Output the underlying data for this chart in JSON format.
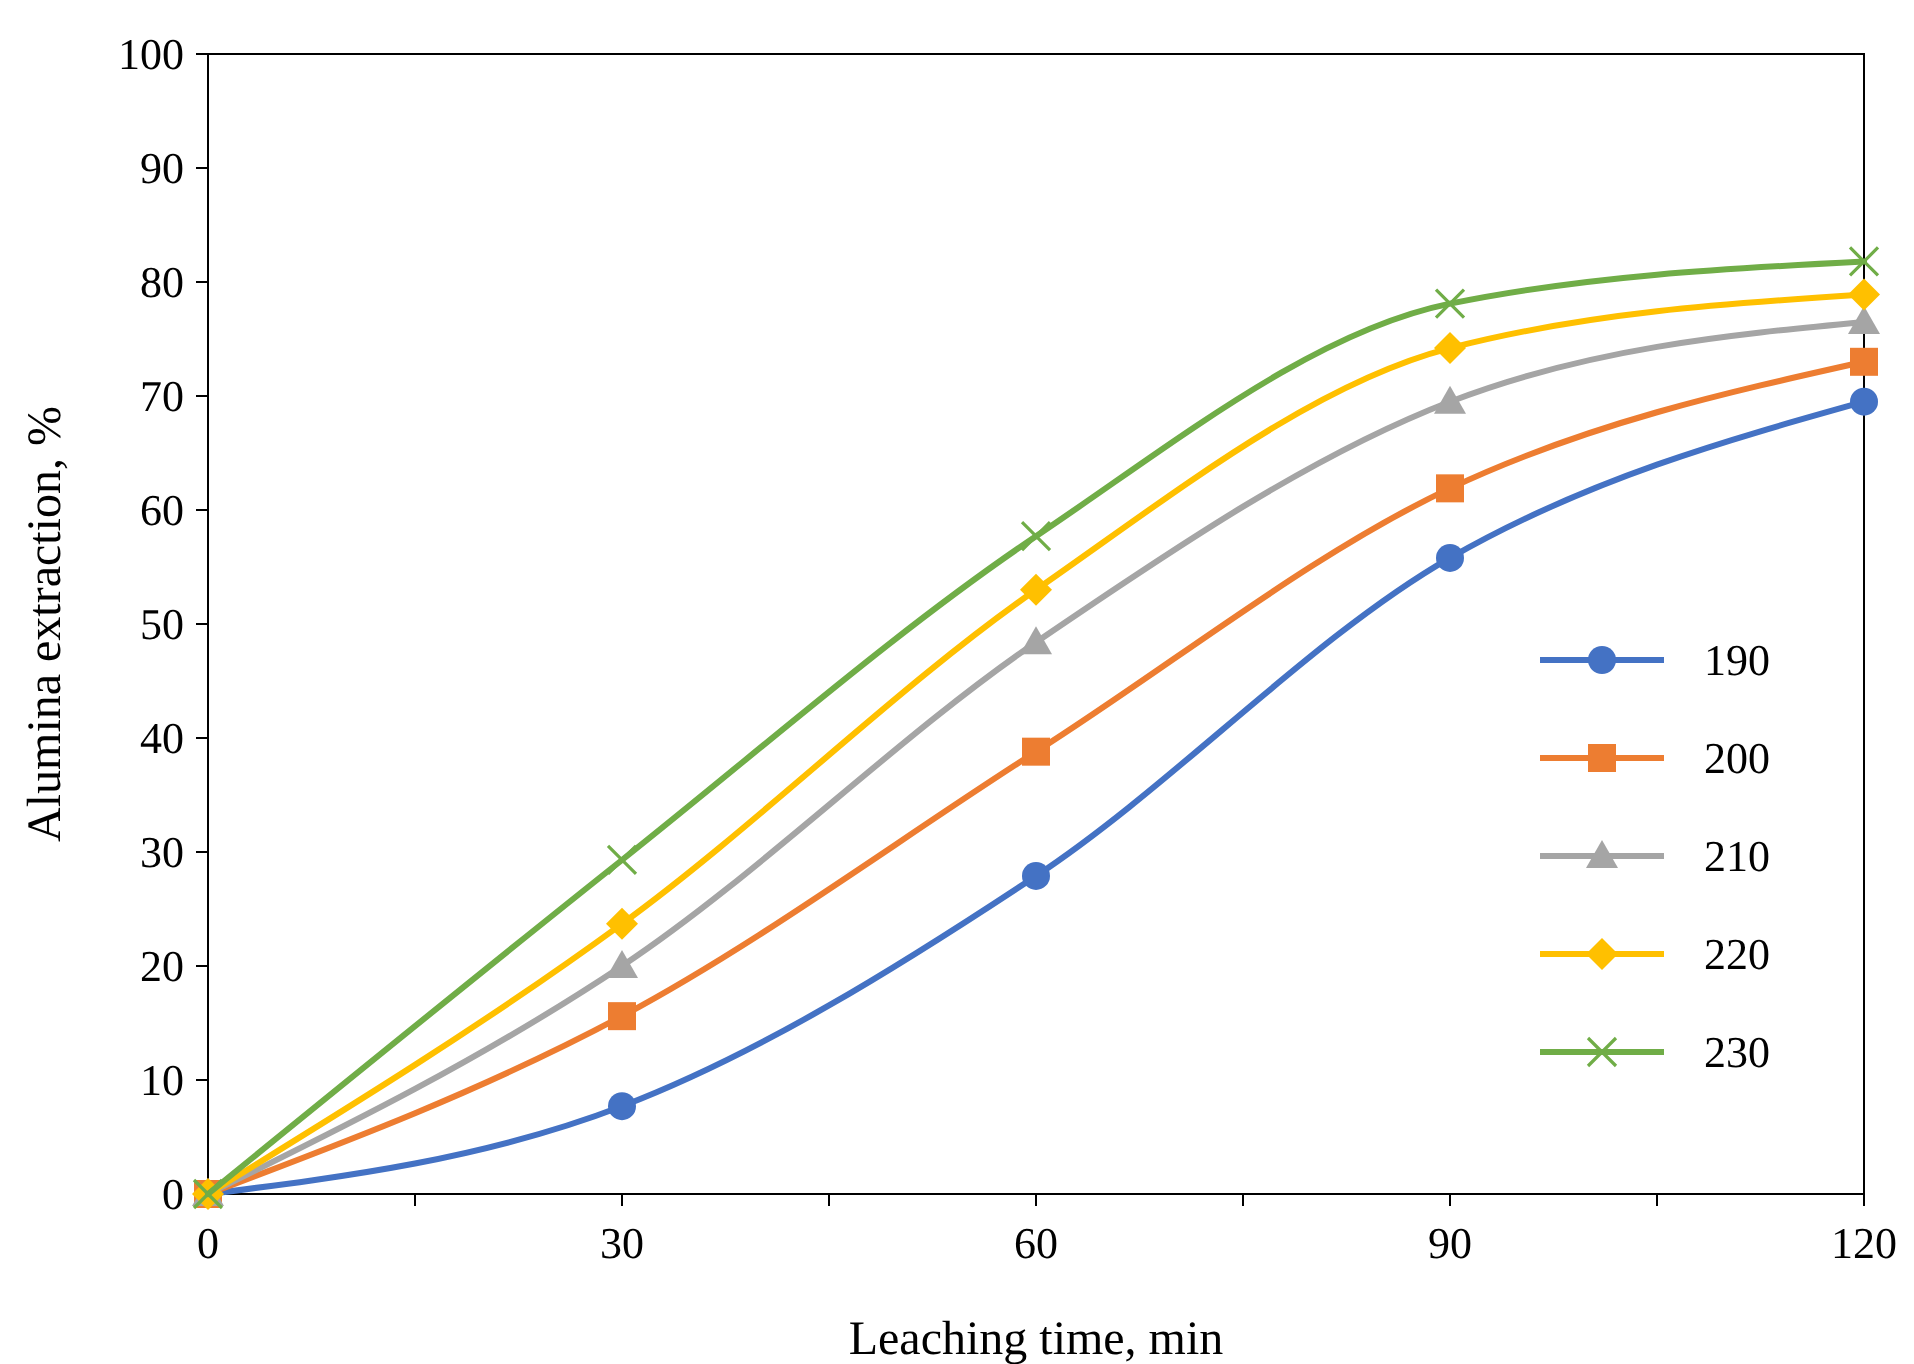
{
  "chart_data": {
    "type": "line",
    "xlabel": "Leaching time, min",
    "ylabel": "Alumina extraction, %",
    "x": [
      0,
      30,
      60,
      90,
      120
    ],
    "xlim": [
      0,
      120
    ],
    "xticks": [
      0,
      {
        "value": 15,
        "label": null
      },
      30,
      {
        "value": 45,
        "label": null
      },
      60,
      {
        "value": 75,
        "label": null
      },
      90,
      {
        "value": 105,
        "label": null
      },
      120
    ],
    "ylim": [
      0,
      100
    ],
    "yticks": [
      0,
      10,
      20,
      30,
      40,
      50,
      60,
      70,
      80,
      90,
      100
    ],
    "grid": false,
    "legend": "right",
    "line_style": "solid",
    "series": [
      {
        "name": "190",
        "color": "#4472c4",
        "marker": "circle",
        "values": [
          0,
          7.7,
          27.9,
          55.8,
          69.5
        ]
      },
      {
        "name": "200",
        "color": "#ed7d31",
        "marker": "square",
        "values": [
          0,
          15.6,
          38.8,
          61.9,
          73.0
        ]
      },
      {
        "name": "210",
        "color": "#a5a5a5",
        "marker": "triangle",
        "values": [
          0,
          20.0,
          48.4,
          69.5,
          76.5
        ]
      },
      {
        "name": "220",
        "color": "#ffc000",
        "marker": "diamond",
        "values": [
          0,
          23.7,
          53.0,
          74.2,
          78.9
        ]
      },
      {
        "name": "230",
        "color": "#70ad47",
        "marker": "cross",
        "values": [
          0,
          29.3,
          57.7,
          78.1,
          81.8
        ]
      }
    ]
  }
}
